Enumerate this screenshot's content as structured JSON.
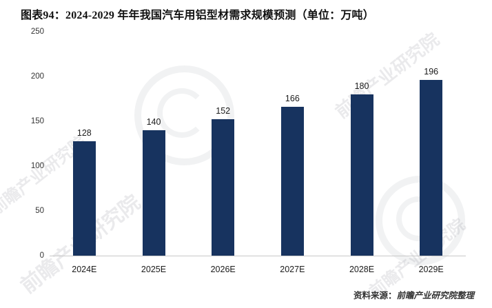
{
  "title": "图表94：2024-2029 年年我国汽车用铝型材需求规模预测（单位：万吨）",
  "chart_data": {
    "type": "bar",
    "categories": [
      "2024E",
      "2025E",
      "2026E",
      "2027E",
      "2028E",
      "2029E"
    ],
    "values": [
      128,
      140,
      152,
      166,
      180,
      196
    ],
    "title": "图表94：2024-2029 年年我国汽车用铝型材需求规模预测（单位：万吨）",
    "xlabel": "",
    "ylabel": "",
    "ylim": [
      0,
      250
    ],
    "yticks": [
      250,
      200,
      150,
      100,
      50,
      0
    ],
    "grid": false,
    "legend": "none",
    "bar_color": "#17335f"
  },
  "source": {
    "label": "资料来源：",
    "value": "前瞻产业研究院整理"
  },
  "watermark": {
    "text": "前瞻产业研究院"
  }
}
